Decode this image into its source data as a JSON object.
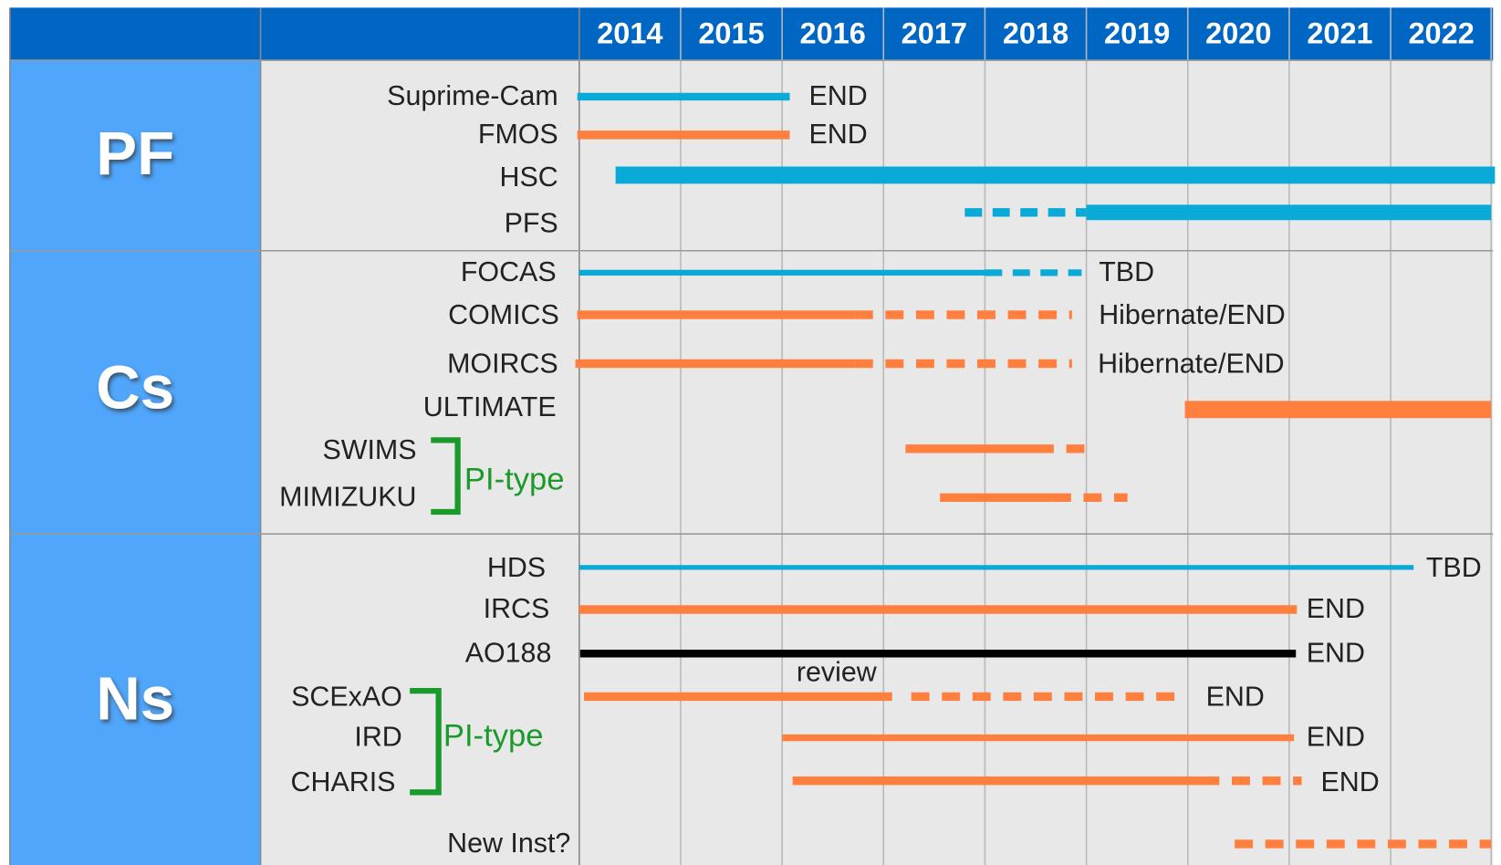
{
  "header": {
    "years": [
      "2014",
      "2015",
      "2016",
      "2017",
      "2018",
      "2019",
      "2020",
      "2021",
      "2022"
    ]
  },
  "sections": [
    {
      "label": "PF",
      "rows": [
        {
          "name": "Suprime-Cam",
          "status": "END"
        },
        {
          "name": "FMOS",
          "status": "END"
        },
        {
          "name": "HSC"
        },
        {
          "name": "PFS"
        }
      ]
    },
    {
      "label": "Cs",
      "bracket_label": "PI-type",
      "rows": [
        {
          "name": "FOCAS",
          "status": "TBD"
        },
        {
          "name": "COMICS",
          "status": "Hibernate/END"
        },
        {
          "name": "MOIRCS",
          "status": "Hibernate/END"
        },
        {
          "name": "ULTIMATE"
        },
        {
          "name": "SWIMS"
        },
        {
          "name": "MIMIZUKU"
        }
      ]
    },
    {
      "label": "Ns",
      "bracket_label": "PI-type",
      "rows": [
        {
          "name": "HDS",
          "status": "TBD"
        },
        {
          "name": "IRCS",
          "status": "END"
        },
        {
          "name": "AO188",
          "status": "END"
        },
        {
          "name": "SCExAO",
          "status": "END",
          "remark": "review"
        },
        {
          "name": "IRD",
          "status": "END"
        },
        {
          "name": "CHARIS",
          "status": "END"
        },
        {
          "name": "New Inst?"
        }
      ]
    }
  ]
}
